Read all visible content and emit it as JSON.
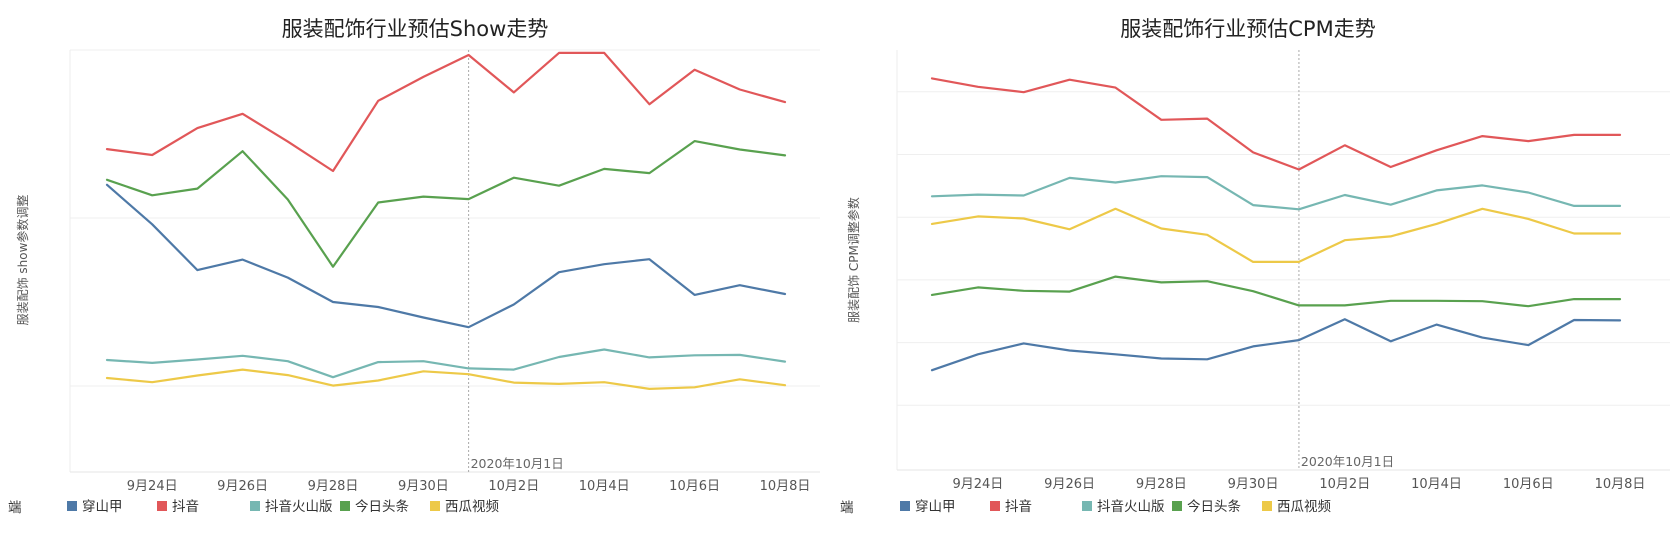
{
  "legend": {
    "title": "端",
    "items": [
      {
        "name": "穿山甲",
        "color": "#4e79a7"
      },
      {
        "name": "抖音",
        "color": "#e15759"
      },
      {
        "name": "抖音火山版",
        "color": "#76b7b2"
      },
      {
        "name": "今日头条",
        "color": "#59a14f"
      },
      {
        "name": "西瓜视频",
        "color": "#edc948"
      }
    ]
  },
  "chart_data": [
    {
      "type": "line",
      "title": "服装配饰行业预估Show走势",
      "ylabel": "服装配饰 show参数调整",
      "x": [
        "9月23日",
        "9月24日",
        "9月25日",
        "9月26日",
        "9月27日",
        "9月28日",
        "9月29日",
        "9月30日",
        "10月1日",
        "10月2日",
        "10月3日",
        "10月4日",
        "10月5日",
        "10月6日",
        "10月7日",
        "10月8日"
      ],
      "x_tick_labels": [
        "9月24日",
        "9月26日",
        "9月28日",
        "9月30日",
        "10月2日",
        "10月4日",
        "10月6日",
        "10月8日"
      ],
      "annotation": {
        "x": "10月1日",
        "label": "2020年10月1日"
      },
      "ylim": [
        0,
        100
      ],
      "gridlines": [
        20,
        60,
        100
      ],
      "grid": true,
      "y_axis_labels": false,
      "series": [
        {
          "name": "穿山甲",
          "values": [
            67.9,
            58.5,
            47.6,
            50.1,
            45.8,
            40.0,
            38.8,
            36.3,
            34.0,
            39.4,
            47.1,
            49.0,
            50.2,
            41.7,
            44.0,
            41.9
          ]
        },
        {
          "name": "抖音",
          "values": [
            76.4,
            75.0,
            81.4,
            84.8,
            78.2,
            71.2,
            87.9,
            93.6,
            98.8,
            89.9,
            99.3,
            99.3,
            87.1,
            95.3,
            90.6,
            87.6
          ]
        },
        {
          "name": "抖音火山版",
          "values": [
            26.2,
            25.5,
            26.3,
            27.2,
            25.9,
            22.1,
            25.7,
            25.9,
            24.2,
            23.9,
            26.9,
            28.7,
            26.8,
            27.3,
            27.4,
            25.8
          ]
        },
        {
          "name": "今日头条",
          "values": [
            69.1,
            65.4,
            67.0,
            75.9,
            64.4,
            48.4,
            63.7,
            65.1,
            64.5,
            69.6,
            67.7,
            71.7,
            70.7,
            78.3,
            76.3,
            74.9
          ]
        },
        {
          "name": "西瓜视频",
          "values": [
            21.9,
            20.9,
            22.5,
            23.9,
            22.6,
            20.1,
            21.3,
            23.5,
            22.8,
            20.8,
            20.5,
            20.9,
            19.3,
            19.7,
            21.6,
            20.2
          ]
        }
      ]
    },
    {
      "type": "line",
      "title": "服装配饰行业预估CPM走势",
      "ylabel": "服装配饰 CPM调整参数",
      "x": [
        "9月23日",
        "9月24日",
        "9月25日",
        "9月26日",
        "9月27日",
        "9月28日",
        "9月29日",
        "9月30日",
        "10月1日",
        "10月2日",
        "10月3日",
        "10月4日",
        "10月5日",
        "10月6日",
        "10月7日",
        "10月8日"
      ],
      "x_tick_labels": [
        "9月24日",
        "9月26日",
        "9月28日",
        "9月30日",
        "10月2日",
        "10月4日",
        "10月6日",
        "10月8日"
      ],
      "annotation": {
        "x": "10月1日",
        "label": "2020年10月1日"
      },
      "ylim": [
        0,
        100
      ],
      "gridlines": [
        15,
        30,
        45,
        60,
        75,
        90
      ],
      "grid": true,
      "y_axis_labels": false,
      "series": [
        {
          "name": "穿山甲",
          "values": [
            23.4,
            27.2,
            29.8,
            28.1,
            27.2,
            26.2,
            26.0,
            29.1,
            30.6,
            35.6,
            30.3,
            34.3,
            31.2,
            29.4,
            35.4,
            35.3
          ]
        },
        {
          "name": "抖音",
          "values": [
            93.2,
            91.2,
            89.9,
            92.9,
            91.0,
            83.3,
            83.6,
            75.5,
            71.4,
            77.2,
            72.0,
            76.0,
            79.4,
            78.2,
            79.7,
            79.7
          ]
        },
        {
          "name": "抖音火山版",
          "values": [
            65.0,
            65.4,
            65.2,
            69.4,
            68.3,
            69.8,
            69.6,
            62.9,
            61.9,
            65.3,
            63.0,
            66.4,
            67.6,
            65.9,
            62.7,
            62.7
          ]
        },
        {
          "name": "今日头条",
          "values": [
            41.4,
            43.2,
            42.4,
            42.2,
            45.8,
            44.4,
            44.7,
            42.3,
            38.9,
            38.9,
            40.0,
            40.0,
            39.9,
            38.7,
            40.4,
            40.4
          ]
        },
        {
          "name": "西瓜视频",
          "values": [
            58.4,
            60.2,
            59.7,
            57.1,
            62.0,
            57.3,
            55.8,
            49.3,
            49.3,
            54.5,
            55.4,
            58.4,
            62.0,
            59.6,
            56.1,
            56.1
          ]
        }
      ]
    }
  ]
}
